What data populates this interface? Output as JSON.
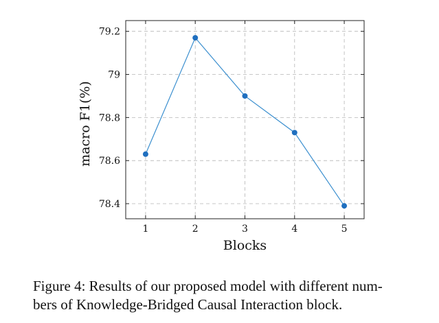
{
  "chart_data": {
    "type": "line",
    "x": [
      1,
      2,
      3,
      4,
      5
    ],
    "series": [
      {
        "name": "macro F1",
        "values": [
          78.63,
          79.17,
          78.9,
          78.73,
          78.39
        ],
        "color": "#3b8fcf",
        "marker_color": "#1f6fbf"
      }
    ],
    "xlabel": "Blocks",
    "ylabel": "macro F1(%)",
    "xticks": [
      1,
      2,
      3,
      4,
      5
    ],
    "xtick_labels": [
      "1",
      "2",
      "3",
      "4",
      "5"
    ],
    "yticks": [
      78.4,
      78.6,
      78.8,
      79,
      79.2
    ],
    "ytick_labels": [
      "78.4",
      "78.6",
      "78.8",
      "79",
      "79.2"
    ],
    "xlim": [
      0.6,
      5.4
    ],
    "ylim": [
      78.33,
      79.25
    ],
    "grid": true
  },
  "caption": {
    "line1": "Figure 4: Results of our proposed model with different num-",
    "line2": "bers of Knowledge-Bridged Causal Interaction block."
  }
}
